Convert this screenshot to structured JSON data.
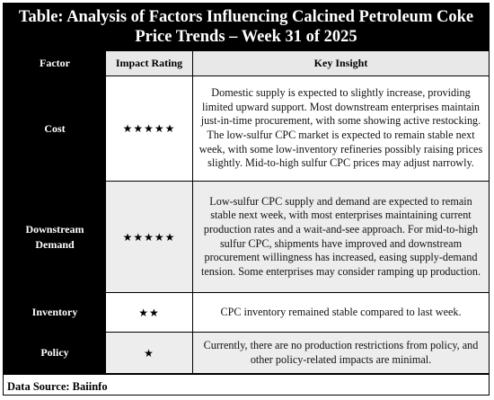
{
  "title": {
    "line1": "Table: Analysis of Factors Influencing Calcined Petroleum Coke",
    "line2": "Price Trends – Week 31 of 2025"
  },
  "table": {
    "headers": [
      "Factor",
      "Impact Rating",
      "Key Insight"
    ],
    "rows": [
      {
        "factor": "Cost",
        "rating": "★★★★★",
        "insight": "Domestic supply is expected to slightly increase, providing limited upward support. Most downstream enterprises maintain just-in-time procurement, with some showing active restocking. The low-sulfur CPC market is expected to remain stable next week, with some low-inventory refineries possibly raising prices slightly. Mid-to-high sulfur CPC prices may adjust narrowly."
      },
      {
        "factor": "Downstream Demand",
        "rating": "★★★★★",
        "insight": "Low-sulfur CPC supply and demand are expected to remain stable next week, with most enterprises maintaining current production rates and a wait-and-see approach. For mid-to-high sulfur CPC, shipments have improved and downstream procurement willingness has increased, easing supply-demand tension. Some enterprises may consider ramping up production."
      },
      {
        "factor": "Inventory",
        "rating": "★★",
        "insight": "CPC inventory remained stable compared to last week."
      },
      {
        "factor": "Policy",
        "rating": "★",
        "insight": "Currently, there are no production restrictions from policy, and other policy-related impacts are minimal."
      }
    ]
  },
  "source": "Data Source: Baiinfo"
}
